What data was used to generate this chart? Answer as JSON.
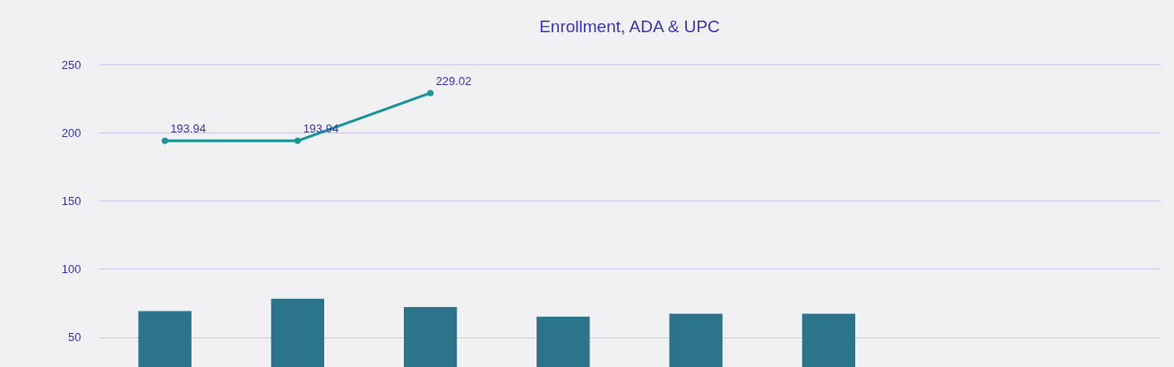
{
  "chart_data": {
    "type": "bar",
    "title": "Enrollment, ADA & UPC",
    "categories": [
      null,
      null,
      null,
      null,
      null,
      null,
      null,
      null
    ],
    "series": [
      {
        "color": "#2c7489",
        "values": [
          69,
          78,
          72,
          65,
          67,
          67,
          null,
          null
        ]
      },
      {
        "type": "line",
        "color": "#1a9696",
        "marker": "circle",
        "values": [
          193.94,
          193.94,
          229.02,
          null,
          null,
          null,
          null,
          null
        ],
        "value_labels": [
          "193.94",
          "193.94",
          "229.02",
          null,
          null,
          null,
          null,
          null
        ]
      }
    ],
    "ylim": [
      28,
      250
    ],
    "yticks": [
      50,
      100,
      150,
      200,
      250
    ],
    "grid": "y",
    "legend": false,
    "tick_labels": "y"
  }
}
